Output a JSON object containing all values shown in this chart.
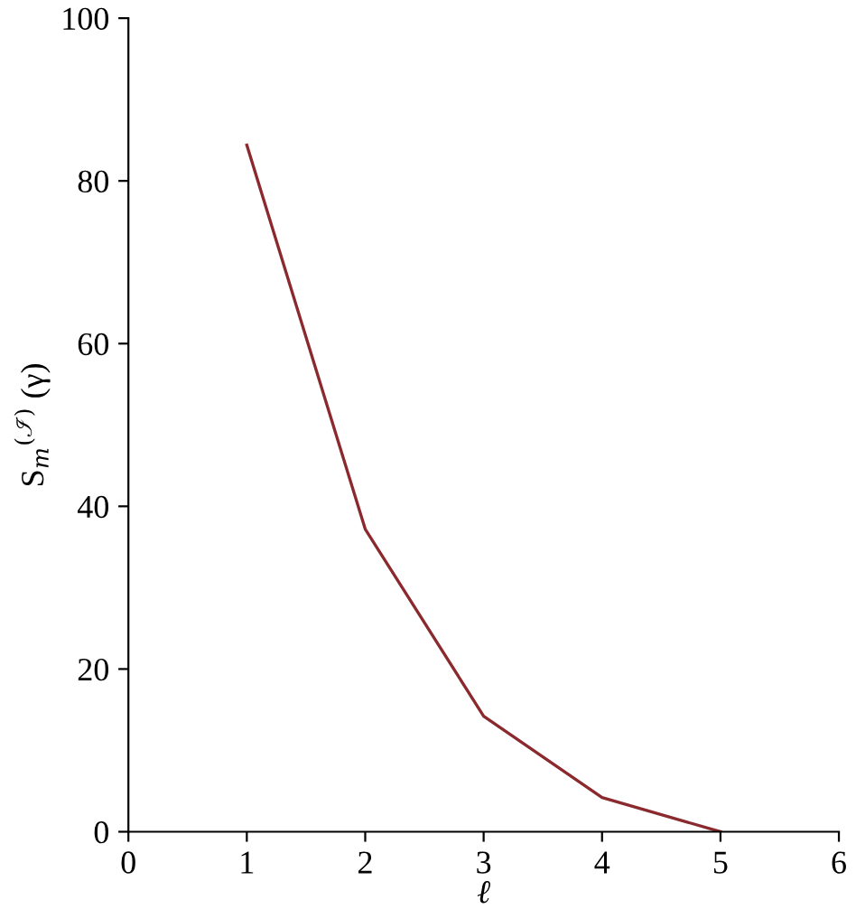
{
  "chart_data": {
    "type": "line",
    "xlabel": "ℓ",
    "ylabel": "S$_{m}$$^{(ℐ)}$ (γ)",
    "x": [
      1,
      2,
      3,
      4,
      5
    ],
    "series": [
      {
        "color": "#8b2a2e",
        "values": [
          84.4,
          37.2,
          14.2,
          4.2,
          0
        ]
      }
    ],
    "xlim": [
      0,
      6
    ],
    "xticks": [
      0,
      1,
      2,
      3,
      4,
      5,
      6
    ],
    "ylim": [
      0,
      100
    ],
    "yticks": [
      0,
      20,
      40,
      60,
      80,
      100
    ],
    "grid": false,
    "legend": false,
    "marker": "none",
    "line_style": "solid"
  }
}
